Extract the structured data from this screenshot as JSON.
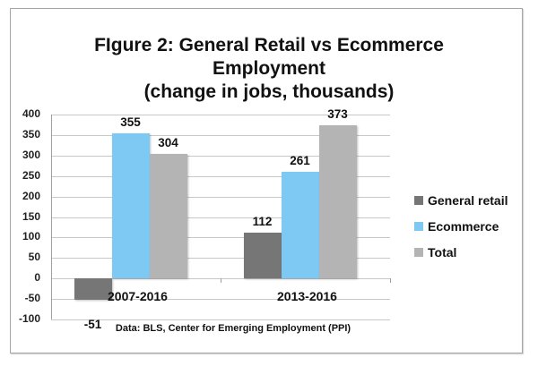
{
  "chart_data": {
    "type": "bar",
    "title": "FIgure 2: General Retail vs Ecommerce Employment (change in jobs, thousands)",
    "title_lines": [
      "FIgure 2: General Retail vs Ecommerce",
      "Employment",
      "(change in jobs, thousands)"
    ],
    "categories": [
      "2007-2016",
      "2013-2016"
    ],
    "series": [
      {
        "name": "General retail",
        "values": [
          -51,
          112
        ],
        "color": "#767676"
      },
      {
        "name": "Ecommerce",
        "values": [
          355,
          261
        ],
        "color": "#7ec8f4"
      },
      {
        "name": "Total",
        "values": [
          304,
          373
        ],
        "color": "#b4b4b4"
      }
    ],
    "xlabel": "",
    "ylabel": "",
    "ylim": [
      -100,
      400
    ],
    "yticks": [
      "400",
      "350",
      "300",
      "250",
      "200",
      "150",
      "100",
      "50",
      "0",
      "-50",
      "-100"
    ],
    "grid": true,
    "legend_position": "right",
    "data_labels": [
      "-51",
      "355",
      "304",
      "112",
      "261",
      "373"
    ],
    "source": "Data: BLS, Center for Emerging Employment (PPI)"
  }
}
